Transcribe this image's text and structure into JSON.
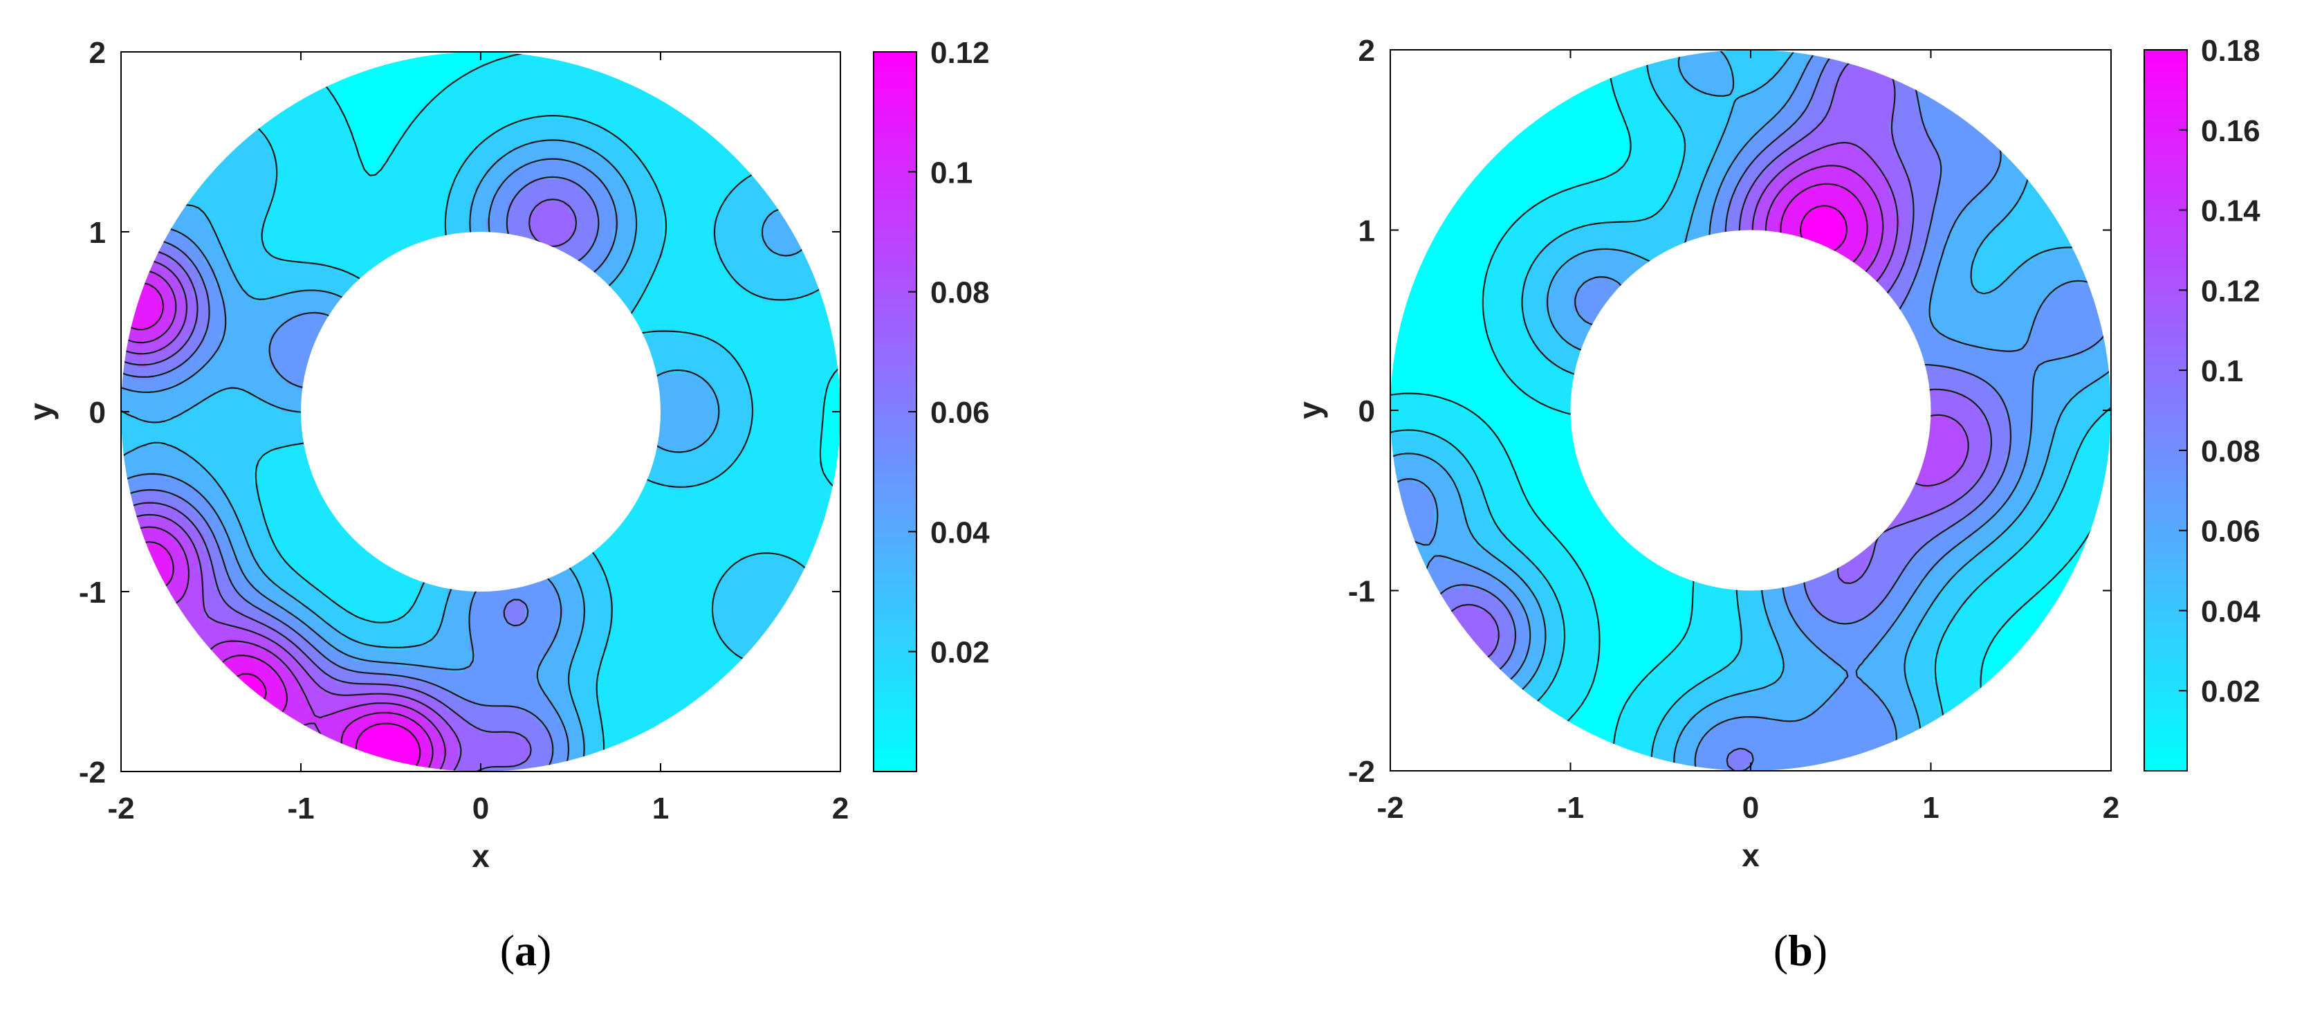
{
  "colors": {
    "low": "#00ffff",
    "high": "#ff00ff",
    "contour_line": "#1a1a1a",
    "frame": "#000000"
  },
  "chart_data": [
    {
      "type": "contour",
      "panel_label": "a",
      "xlabel": "x",
      "ylabel": "y",
      "xlim": [
        -2,
        2
      ],
      "ylim": [
        -2,
        2
      ],
      "xticks": [
        "-2",
        "-1",
        "0",
        "1",
        "2"
      ],
      "yticks": [
        "2",
        "1",
        "0",
        "-1",
        "-2"
      ],
      "domain": {
        "shape": "annulus",
        "inner_radius": 1,
        "outer_radius": 2
      },
      "colorbar": {
        "min": 0,
        "max": 0.12,
        "ticks": [
          "0.12",
          "0.1",
          "0.08",
          "0.06",
          "0.04",
          "0.02"
        ],
        "tick_values": [
          0.12,
          0.1,
          0.08,
          0.06,
          0.04,
          0.02
        ]
      },
      "hotspots": [
        {
          "x": -1.9,
          "y": 0.6,
          "peak": 0.1,
          "spread": 0.28
        },
        {
          "x": -1.85,
          "y": -0.85,
          "peak": 0.1,
          "spread": 0.3
        },
        {
          "x": -1.3,
          "y": -1.55,
          "peak": 0.11,
          "spread": 0.32
        },
        {
          "x": -0.5,
          "y": -1.9,
          "peak": 0.12,
          "spread": 0.3
        },
        {
          "x": 0.4,
          "y": 1.05,
          "peak": 0.07,
          "spread": 0.33
        },
        {
          "x": 0.2,
          "y": -1.1,
          "peak": 0.055,
          "spread": 0.32
        },
        {
          "x": -0.9,
          "y": 0.35,
          "peak": 0.05,
          "spread": 0.28
        },
        {
          "x": 1.1,
          "y": 0.0,
          "peak": 0.04,
          "spread": 0.3
        },
        {
          "x": 0.25,
          "y": -1.9,
          "peak": 0.06,
          "spread": 0.25
        },
        {
          "x": -1.45,
          "y": 1.35,
          "peak": 0.03,
          "spread": 0.3
        },
        {
          "x": 1.7,
          "y": 1.0,
          "peak": 0.035,
          "spread": 0.3
        },
        {
          "x": 1.6,
          "y": -1.1,
          "peak": 0.03,
          "spread": 0.3
        },
        {
          "x": -1.7,
          "y": 0.0,
          "peak": 0.025,
          "spread": 0.5
        }
      ],
      "baseline": 0.02
    },
    {
      "type": "contour",
      "panel_label": "b",
      "xlabel": "x",
      "ylabel": "y",
      "xlim": [
        -2,
        2
      ],
      "ylim": [
        -2,
        2
      ],
      "xticks": [
        "-2",
        "-1",
        "0",
        "1",
        "2"
      ],
      "yticks": [
        "2",
        "1",
        "0",
        "-1",
        "-2"
      ],
      "domain": {
        "shape": "annulus",
        "inner_radius": 1,
        "outer_radius": 2
      },
      "colorbar": {
        "min": 0,
        "max": 0.18,
        "ticks": [
          "0.18",
          "0.16",
          "0.14",
          "0.12",
          "0.1",
          "0.08",
          "0.06",
          "0.04",
          "0.02"
        ],
        "tick_values": [
          0.18,
          0.16,
          0.14,
          0.12,
          0.1,
          0.08,
          0.06,
          0.04,
          0.02
        ]
      },
      "hotspots": [
        {
          "x": 0.4,
          "y": 1.0,
          "peak": 0.17,
          "spread": 0.42
        },
        {
          "x": 1.05,
          "y": -0.2,
          "peak": 0.12,
          "spread": 0.4
        },
        {
          "x": 0.5,
          "y": -0.95,
          "peak": 0.09,
          "spread": 0.36
        },
        {
          "x": -1.55,
          "y": -1.25,
          "peak": 0.11,
          "spread": 0.3
        },
        {
          "x": -1.9,
          "y": -0.5,
          "peak": 0.07,
          "spread": 0.28
        },
        {
          "x": -0.1,
          "y": -1.95,
          "peak": 0.08,
          "spread": 0.3
        },
        {
          "x": 0.65,
          "y": -1.85,
          "peak": 0.07,
          "spread": 0.3
        },
        {
          "x": -0.85,
          "y": 0.6,
          "peak": 0.07,
          "spread": 0.3
        },
        {
          "x": 1.85,
          "y": 0.55,
          "peak": 0.07,
          "spread": 0.35
        },
        {
          "x": 0.65,
          "y": 1.9,
          "peak": 0.09,
          "spread": 0.28
        },
        {
          "x": -0.3,
          "y": 1.95,
          "peak": 0.05,
          "spread": 0.25
        },
        {
          "x": 1.3,
          "y": 1.45,
          "peak": 0.06,
          "spread": 0.3
        }
      ],
      "baseline": 0.02
    }
  ]
}
